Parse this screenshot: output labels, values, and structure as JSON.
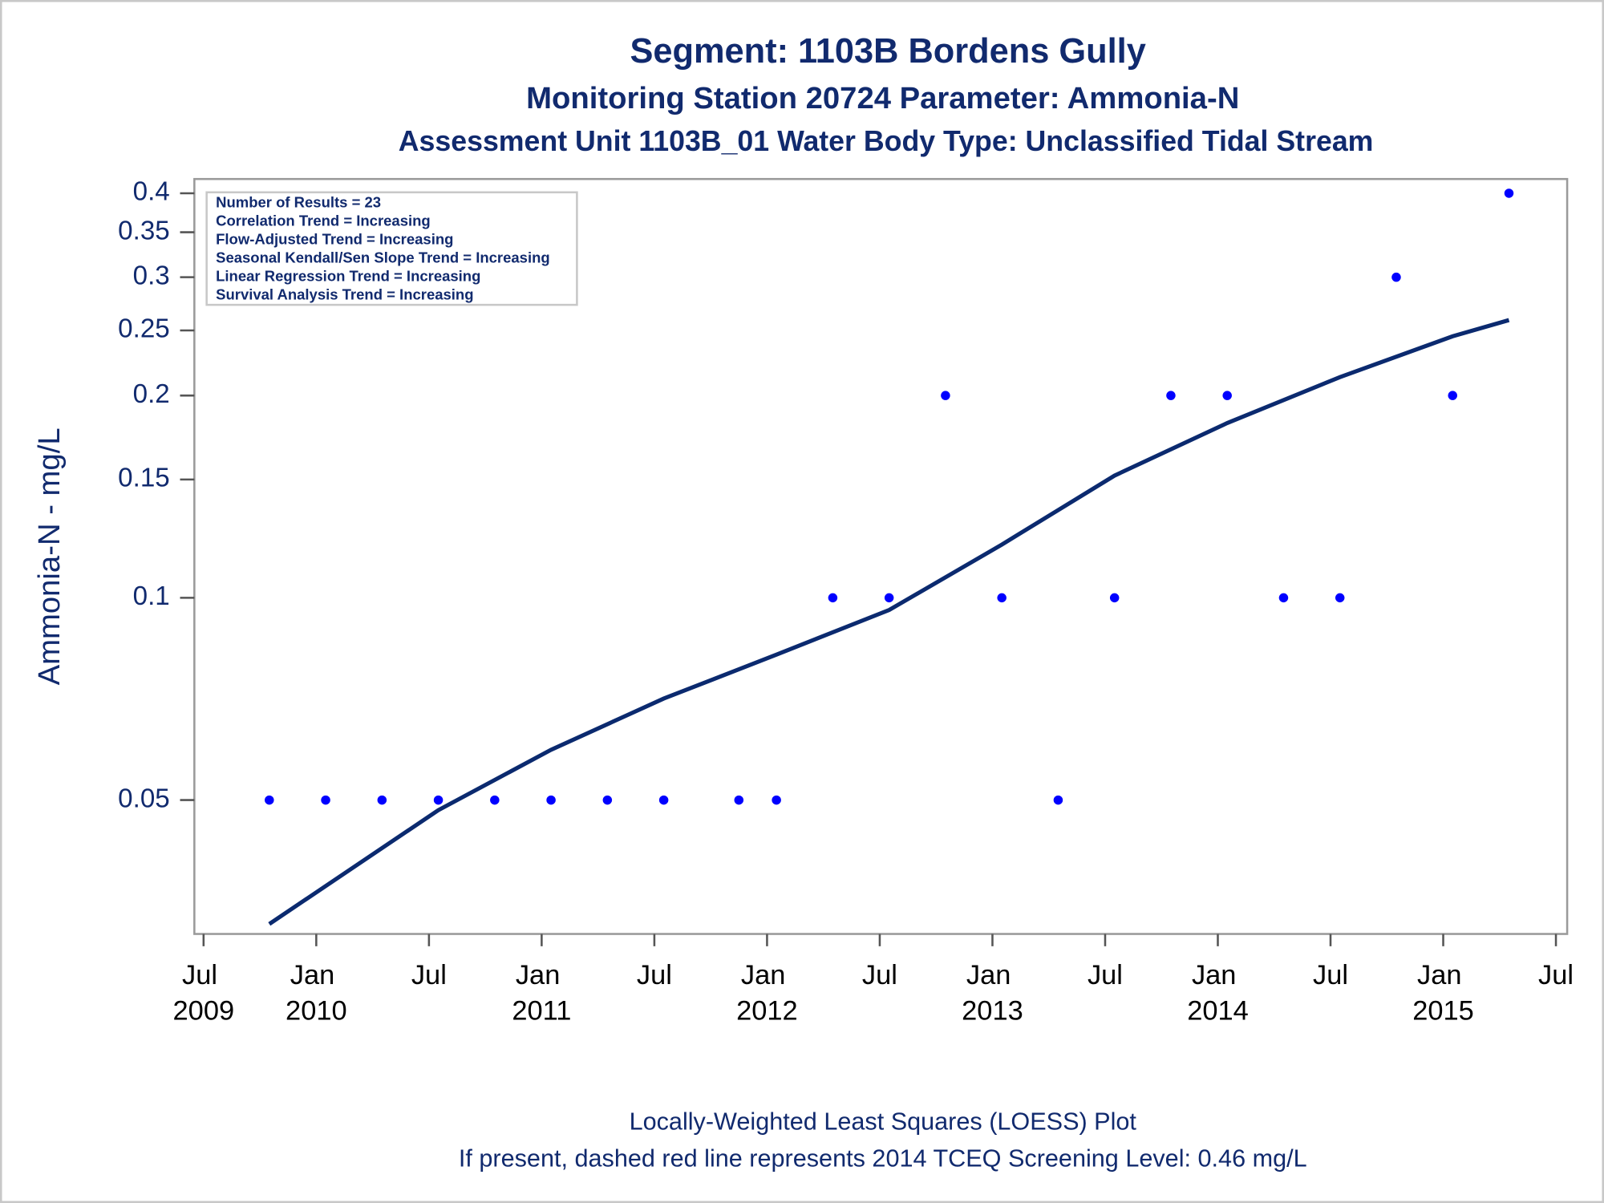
{
  "chart_data": {
    "type": "scatter",
    "title": "Segment: 1103B  Bordens Gully",
    "subtitle": "Monitoring Station 20724 Parameter: Ammonia-N",
    "subtitle2": "Assessment Unit 1103B_01   Water Body Type: Unclassified Tidal Stream",
    "y_label": "Ammonia-N - mg/L",
    "annotations": [
      "Number of Results = 23",
      "Correlation Trend = Increasing",
      "Flow-Adjusted Trend = Increasing",
      "Seasonal Kendall/Sen Slope Trend = Increasing",
      "Linear Regression Trend = Increasing",
      "Survival Analysis Trend = Increasing"
    ],
    "footnotes": [
      "Locally-Weighted Least Squares (LOESS) Plot",
      "If present, dashed red line represents 2014 TCEQ Screening Level: 0.46 mg/L"
    ],
    "yscale": "log",
    "ylim": [
      0.0316,
      0.42
    ],
    "yticks": [
      0.05,
      0.1,
      0.15,
      0.2,
      0.25,
      0.3,
      0.35,
      0.4
    ],
    "xlim": [
      "2009-07",
      "2015-07"
    ],
    "xticks": [
      {
        "value": "2009-07",
        "label": "Jul 2009"
      },
      {
        "value": "2010-01",
        "label": "Jan 2010"
      },
      {
        "value": "2010-07",
        "label": "Jul"
      },
      {
        "value": "2011-01",
        "label": "Jan 2011"
      },
      {
        "value": "2011-07",
        "label": "Jul"
      },
      {
        "value": "2012-01",
        "label": "Jan 2012"
      },
      {
        "value": "2012-07",
        "label": "Jul"
      },
      {
        "value": "2013-01",
        "label": "Jan 2013"
      },
      {
        "value": "2013-07",
        "label": "Jul"
      },
      {
        "value": "2014-01",
        "label": "Jan 2014"
      },
      {
        "value": "2014-07",
        "label": "Jul"
      },
      {
        "value": "2015-01",
        "label": "Jan 2015"
      },
      {
        "value": "2015-07",
        "label": "Jul"
      }
    ],
    "points": {
      "color": "#0000ff",
      "x": [
        "2009-10",
        "2010-01",
        "2010-04",
        "2010-07",
        "2010-10",
        "2011-01",
        "2011-04",
        "2011-07",
        "2011-11",
        "2012-01",
        "2012-04",
        "2012-07",
        "2012-10",
        "2013-01",
        "2013-04",
        "2013-07",
        "2013-10",
        "2014-01",
        "2014-04",
        "2014-07",
        "2014-10",
        "2015-01",
        "2015-04"
      ],
      "values": [
        0.05,
        0.05,
        0.05,
        0.05,
        0.05,
        0.05,
        0.05,
        0.05,
        0.05,
        0.05,
        0.1,
        0.1,
        0.2,
        0.1,
        0.05,
        0.1,
        0.2,
        0.2,
        0.1,
        0.1,
        0.3,
        0.2,
        0.4
      ]
    },
    "loess": {
      "color": "#0b2a6f",
      "x": [
        "2009-10",
        "2010-07",
        "2011-01",
        "2011-07",
        "2012-01",
        "2012-07",
        "2013-01",
        "2013-07",
        "2014-01",
        "2014-07",
        "2015-01",
        "2015-04"
      ],
      "values": [
        0.0327,
        0.0483,
        0.0594,
        0.0708,
        0.0823,
        0.0959,
        0.12,
        0.152,
        0.182,
        0.213,
        0.245,
        0.259
      ]
    }
  }
}
